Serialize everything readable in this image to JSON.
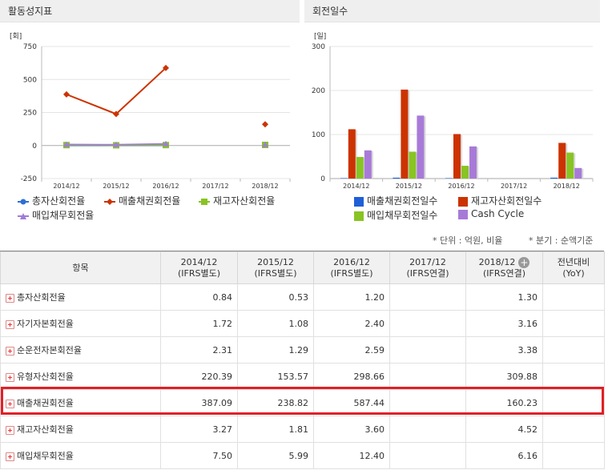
{
  "left_panel": {
    "title": "활동성지표"
  },
  "right_panel": {
    "title": "회전일수"
  },
  "chart_data": [
    {
      "type": "line",
      "ylabel": "[회]",
      "categories": [
        "2014/12",
        "2015/12",
        "2016/12",
        "2017/12",
        "2018/12"
      ],
      "ylim": [
        -250,
        750
      ],
      "yticks": [
        "750",
        "500",
        "250",
        "0",
        "-250"
      ],
      "series": [
        {
          "name": "총자산회전율",
          "color": "#2e6fd6",
          "marker": "circle",
          "values": [
            0.84,
            0.53,
            1.2,
            null,
            1.3
          ]
        },
        {
          "name": "매출채권회전율",
          "color": "#cc3300",
          "marker": "diamond",
          "values": [
            387.09,
            238.82,
            587.44,
            null,
            160.23
          ]
        },
        {
          "name": "재고자산회전율",
          "color": "#88c424",
          "marker": "square",
          "values": [
            3.27,
            1.81,
            3.6,
            null,
            4.52
          ]
        },
        {
          "name": "매입채무회전율",
          "color": "#a07cd8",
          "marker": "triangle",
          "values": [
            7.5,
            5.99,
            12.4,
            null,
            6.16
          ]
        }
      ]
    },
    {
      "type": "bar",
      "ylabel": "[일]",
      "categories": [
        "2014/12",
        "2015/12",
        "2016/12",
        "2017/12",
        "2018/12"
      ],
      "ylim": [
        0,
        300
      ],
      "yticks": [
        "300",
        "200",
        "100",
        "0"
      ],
      "series": [
        {
          "name": "매출채권회전일수",
          "color": "#1f5fd6",
          "values": [
            1,
            2,
            1,
            null,
            2
          ]
        },
        {
          "name": "재고자산회전일수",
          "color": "#cc3300",
          "values": [
            112,
            202,
            101,
            null,
            81
          ]
        },
        {
          "name": "매입채무회전일수",
          "color": "#88c424",
          "values": [
            49,
            61,
            29,
            null,
            59
          ]
        },
        {
          "name": "Cash Cycle",
          "color": "#a87ad8",
          "values": [
            64,
            143,
            73,
            null,
            24
          ]
        }
      ]
    }
  ],
  "notes": {
    "unit": "* 단위 : 억원, 비율",
    "period": "* 분기 : 순액기준"
  },
  "table": {
    "headers": [
      {
        "line1": "항목",
        "line2": ""
      },
      {
        "line1": "2014/12",
        "line2": "(IFRS별도)"
      },
      {
        "line1": "2015/12",
        "line2": "(IFRS별도)"
      },
      {
        "line1": "2016/12",
        "line2": "(IFRS별도)"
      },
      {
        "line1": "2017/12",
        "line2": "(IFRS연결)"
      },
      {
        "line1": "2018/12",
        "line2": "(IFRS연결)"
      },
      {
        "line1": "전년대비",
        "line2": "(YoY)"
      }
    ],
    "rows": [
      {
        "name": "총자산회전율",
        "values": [
          "0.84",
          "0.53",
          "1.20",
          "",
          "1.30",
          ""
        ]
      },
      {
        "name": "자기자본회전율",
        "values": [
          "1.72",
          "1.08",
          "2.40",
          "",
          "3.16",
          ""
        ]
      },
      {
        "name": "순운전자본회전율",
        "values": [
          "2.31",
          "1.29",
          "2.59",
          "",
          "3.38",
          ""
        ]
      },
      {
        "name": "유형자산회전율",
        "values": [
          "220.39",
          "153.57",
          "298.66",
          "",
          "309.88",
          ""
        ]
      },
      {
        "name": "매출채권회전율",
        "values": [
          "387.09",
          "238.82",
          "587.44",
          "",
          "160.23",
          ""
        ]
      },
      {
        "name": "재고자산회전율",
        "values": [
          "3.27",
          "1.81",
          "3.60",
          "",
          "4.52",
          ""
        ]
      },
      {
        "name": "매입채무회전율",
        "values": [
          "7.50",
          "5.99",
          "12.40",
          "",
          "6.16",
          ""
        ]
      }
    ]
  }
}
